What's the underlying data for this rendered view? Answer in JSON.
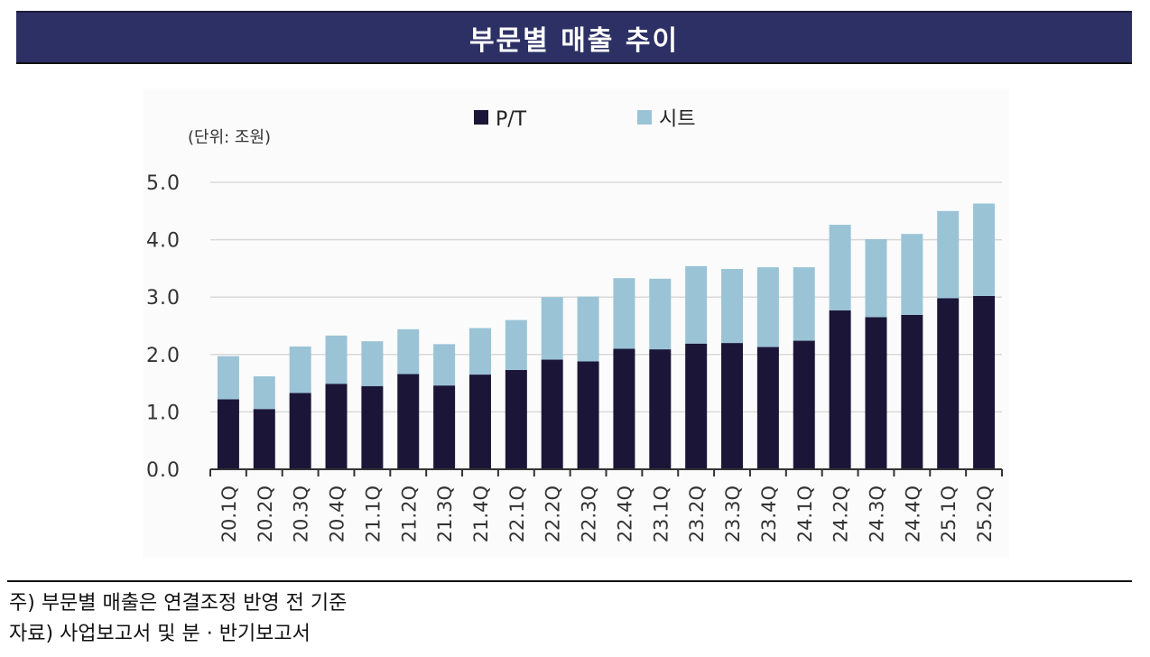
{
  "header": {
    "title": "부문별 매출 추이"
  },
  "chart_data": {
    "type": "bar",
    "stacked": true,
    "unit_label": "(단위: 조원)",
    "categories": [
      "20.1Q",
      "20.2Q",
      "20.3Q",
      "20.4Q",
      "21.1Q",
      "21.2Q",
      "21.3Q",
      "21.4Q",
      "22.1Q",
      "22.2Q",
      "22.3Q",
      "22.4Q",
      "23.1Q",
      "23.2Q",
      "23.3Q",
      "23.4Q",
      "24.1Q",
      "24.2Q",
      "24.3Q",
      "24.4Q",
      "25.1Q",
      "25.2Q"
    ],
    "series": [
      {
        "name": "P/T",
        "color": "#1b1638",
        "values": [
          1.22,
          1.05,
          1.33,
          1.49,
          1.45,
          1.66,
          1.46,
          1.65,
          1.73,
          1.91,
          1.88,
          2.1,
          2.09,
          2.19,
          2.2,
          2.13,
          2.24,
          2.77,
          2.65,
          2.69,
          2.98,
          3.02
        ]
      },
      {
        "name": "시트",
        "color": "#9ac3d6",
        "values": [
          0.75,
          0.57,
          0.81,
          0.84,
          0.78,
          0.78,
          0.72,
          0.81,
          0.87,
          1.09,
          1.13,
          1.23,
          1.23,
          1.35,
          1.29,
          1.39,
          1.28,
          1.49,
          1.36,
          1.41,
          1.52,
          1.61
        ]
      }
    ],
    "y_ticks": [
      "0.0",
      "1.0",
      "2.0",
      "3.0",
      "4.0",
      "5.0"
    ],
    "ylim": [
      0,
      5
    ],
    "grid": true,
    "legend_position": "top-center"
  },
  "notes": {
    "note1": "주) 부문별 매출은 연결조정 반영 전 기준",
    "note2": "자료) 사업보고서 및 분 · 반기보고서"
  }
}
